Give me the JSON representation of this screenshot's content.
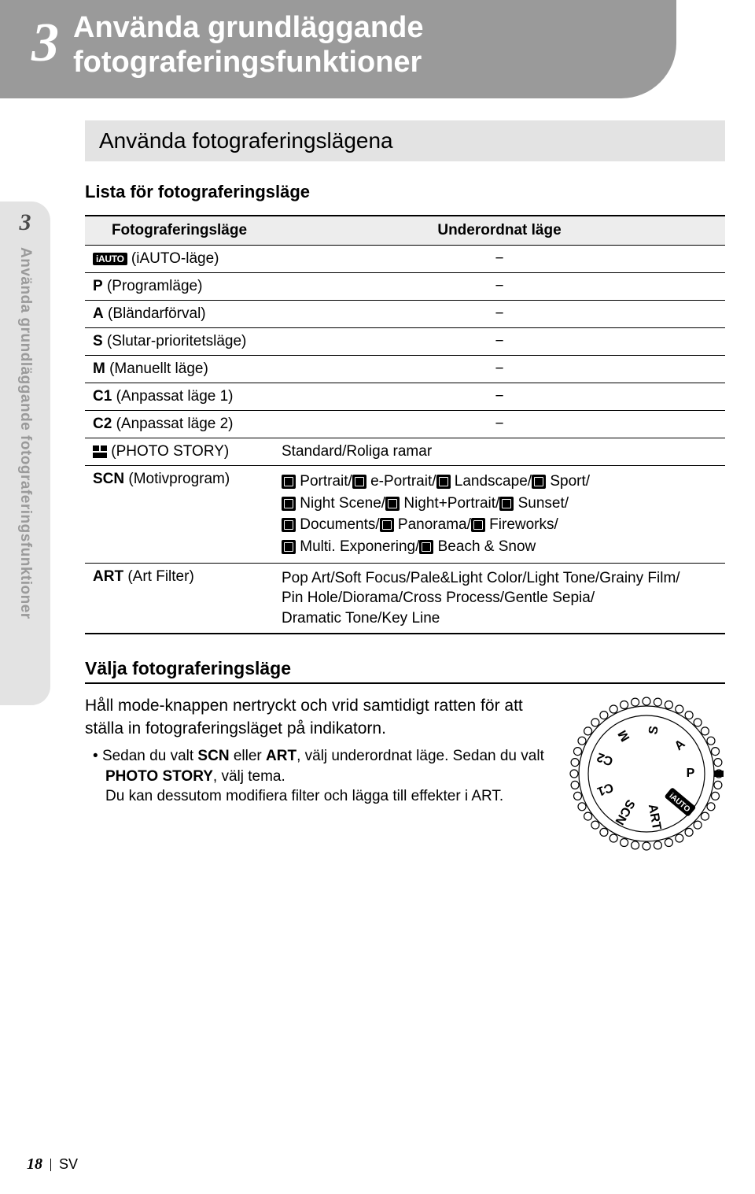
{
  "chapter": {
    "number": "3",
    "title_line1": "Använda grundläggande",
    "title_line2": "fotograferingsfunktioner"
  },
  "section_bar": "Använda fotograferingslägena",
  "side_tab": {
    "num": "3",
    "text": "Använda grundläggande fotograferingsfunktioner"
  },
  "list_heading": "Lista för fotograferingsläge",
  "table": {
    "head_left": "Fotograferingsläge",
    "head_right": "Underordnat läge",
    "rows": [
      {
        "mode_icon": "iauto-badge",
        "mode_text": "(iAUTO-läge)",
        "sub": "−"
      },
      {
        "mode_bold": "P",
        "mode_text": "(Programläge)",
        "sub": "−"
      },
      {
        "mode_bold": "A",
        "mode_text": "(Bländarförval)",
        "sub": "−"
      },
      {
        "mode_bold": "S",
        "mode_text": "(Slutar-prioritetsläge)",
        "sub": "−"
      },
      {
        "mode_bold": "M",
        "mode_text": "(Manuellt läge)",
        "sub": "−"
      },
      {
        "mode_bold": "C1",
        "mode_text": "(Anpassat läge 1)",
        "sub": "−"
      },
      {
        "mode_bold": "C2",
        "mode_text": "(Anpassat läge 2)",
        "sub": "−"
      },
      {
        "mode_icon": "photostory",
        "mode_text": "(PHOTO STORY)",
        "sub_text": "Standard/Roliga ramar"
      }
    ],
    "scn": {
      "left_bold": "SCN",
      "left_text": "(Motivprogram)",
      "lines": [
        [
          {
            "icon": true
          },
          {
            "t": " Portrait/"
          },
          {
            "icon": true
          },
          {
            "t": " e-Portrait/"
          },
          {
            "icon": true
          },
          {
            "t": " Landscape/"
          },
          {
            "icon": true
          },
          {
            "t": " Sport/"
          }
        ],
        [
          {
            "icon": true
          },
          {
            "t": " Night Scene/"
          },
          {
            "icon": true
          },
          {
            "t": " Night+Portrait/"
          },
          {
            "icon": true
          },
          {
            "t": " Sunset/"
          }
        ],
        [
          {
            "icon": true
          },
          {
            "t": " Documents/"
          },
          {
            "icon": true
          },
          {
            "t": " Panorama/"
          },
          {
            "icon": true
          },
          {
            "t": " Fireworks/"
          }
        ],
        [
          {
            "icon": true
          },
          {
            "t": " Multi. Exponering/"
          },
          {
            "icon": true
          },
          {
            "t": " Beach & Snow"
          }
        ]
      ]
    },
    "art": {
      "left_bold": "ART",
      "left_text": "(Art Filter)",
      "lines": [
        "Pop Art/Soft Focus/Pale&Light Color/Light Tone/Grainy Film/",
        "Pin Hole/Diorama/Cross Process/Gentle Sepia/",
        "Dramatic Tone/Key Line"
      ]
    }
  },
  "choose_heading": "Välja fotograferingsläge",
  "body_p1": "Håll mode-knappen nertryckt och vrid samtidigt ratten för att ställa in fotograferingsläget på indikatorn.",
  "bullet_parts": {
    "p1": "Sedan du valt ",
    "b1": "SCN",
    "p2": " eller ",
    "b2": "ART",
    "p3": ", välj underordnat läge. Sedan du valt ",
    "b3": "PHOTO STORY",
    "p4": ", välj tema.",
    "line2": "Du kan dessutom modifiera filter och lägga till effekter i ART."
  },
  "dial_labels": [
    "M",
    "S",
    "A",
    "P",
    "iAUTO",
    "ART",
    "SCN",
    "C1",
    "C2"
  ],
  "footer": {
    "page": "18",
    "lang": "SV"
  },
  "colors": {
    "header_bg": "#9a9a9a",
    "section_bg": "#e3e3e3",
    "table_header_bg": "#ededed",
    "text": "#000000",
    "side_text": "#9a9a9a"
  }
}
